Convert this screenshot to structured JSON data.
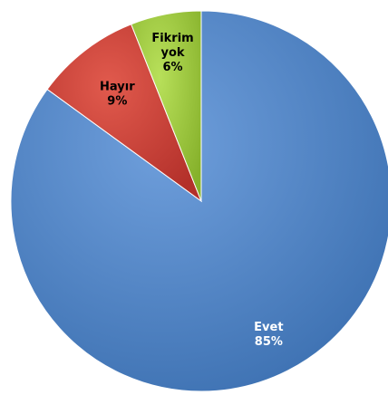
{
  "chart_data": {
    "type": "pie",
    "slices": [
      {
        "name": "Evet",
        "value": 85,
        "label": "85%",
        "color": "#4a7ebb",
        "label_color": "#ffffff"
      },
      {
        "name": "Hayır",
        "value": 9,
        "label": "9%",
        "color": "#c0392b",
        "label_color": "#000000"
      },
      {
        "name_lines": [
          "Fikrim",
          "yok"
        ],
        "name": "Fikrim yok",
        "value": 6,
        "label": "6%",
        "color": "#9ac43a",
        "label_color": "#000000"
      }
    ],
    "start_angle_deg": 0,
    "direction": "clockwise",
    "legend": "none"
  }
}
